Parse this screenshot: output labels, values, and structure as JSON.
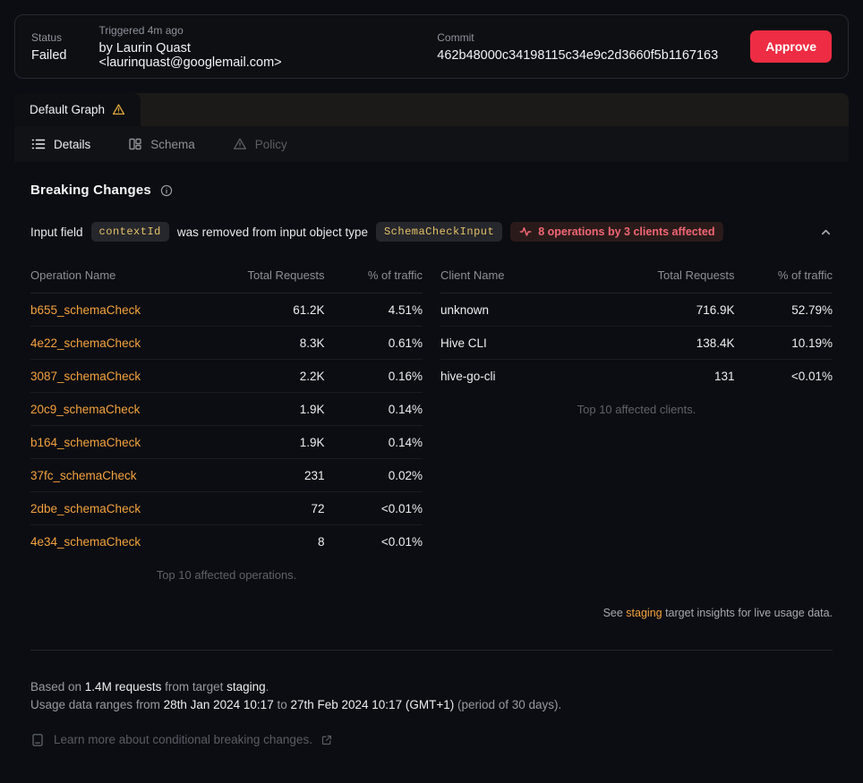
{
  "header": {
    "status_label": "Status",
    "status_value": "Failed",
    "triggered_label": "Triggered 4m ago",
    "triggered_value": "by Laurin Quast <laurinquast@googlemail.com>",
    "commit_label": "Commit",
    "commit_value": "462b48000c34198115c34e9c2d3660f5b1167163",
    "approve_label": "Approve"
  },
  "tabs": {
    "graph_label": "Default Graph",
    "subtabs": {
      "details": "Details",
      "schema": "Schema",
      "policy": "Policy"
    }
  },
  "breaking": {
    "title": "Breaking Changes",
    "change": {
      "prefix": "Input field",
      "field": "contextId",
      "middle": "was removed from input object type",
      "type": "SchemaCheckInput",
      "affected": "8 operations by 3 clients affected"
    }
  },
  "operations_table": {
    "headers": [
      "Operation Name",
      "Total Requests",
      "% of traffic"
    ],
    "rows": [
      [
        "b655_schemaCheck",
        "61.2K",
        "4.51%"
      ],
      [
        "4e22_schemaCheck",
        "8.3K",
        "0.61%"
      ],
      [
        "3087_schemaCheck",
        "2.2K",
        "0.16%"
      ],
      [
        "20c9_schemaCheck",
        "1.9K",
        "0.14%"
      ],
      [
        "b164_schemaCheck",
        "1.9K",
        "0.14%"
      ],
      [
        "37fc_schemaCheck",
        "231",
        "0.02%"
      ],
      [
        "2dbe_schemaCheck",
        "72",
        "<0.01%"
      ],
      [
        "4e34_schemaCheck",
        "8",
        "<0.01%"
      ]
    ],
    "caption": "Top 10 affected operations."
  },
  "clients_table": {
    "headers": [
      "Client Name",
      "Total Requests",
      "% of traffic"
    ],
    "rows": [
      [
        "unknown",
        "716.9K",
        "52.79%"
      ],
      [
        "Hive CLI",
        "138.4K",
        "10.19%"
      ],
      [
        "hive-go-cli",
        "131",
        "<0.01%"
      ]
    ],
    "caption": "Top 10 affected clients."
  },
  "insights_note": {
    "prefix": "See ",
    "link": "staging",
    "suffix": " target insights for live usage data."
  },
  "footer": {
    "based_prefix": "Based on ",
    "requests": "1.4M requests",
    "based_middle": " from target ",
    "target": "staging",
    "based_suffix": ".",
    "range_prefix": "Usage data ranges from ",
    "range_from": "28th Jan 2024 10:17",
    "range_to_word": " to ",
    "range_to": "27th Feb 2024 10:17 (GMT+1)",
    "range_suffix": " (period of 30 days).",
    "learn_more": "Learn more about conditional breaking changes."
  },
  "colors": {
    "accent_orange": "#f4a23e",
    "approve_red": "#ee2c43",
    "affected_red_text": "#f16674",
    "code_amber": "#e5c269",
    "warning_amber": "#e0a93c",
    "panel_strip": "#1b1a19",
    "background": "#0b0d12"
  }
}
